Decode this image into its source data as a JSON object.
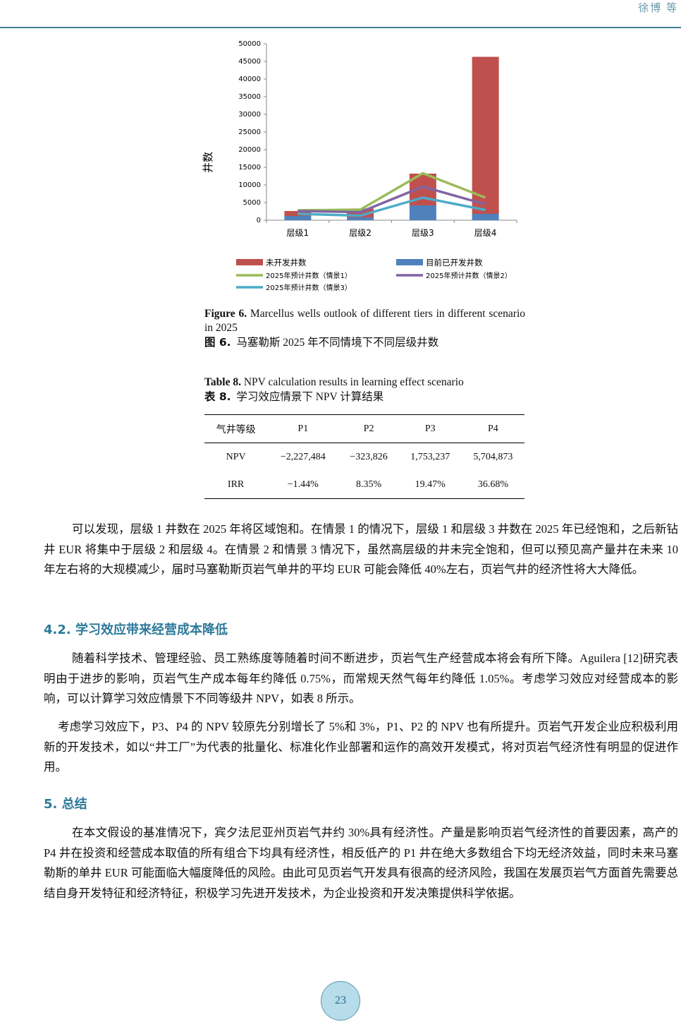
{
  "header": {
    "authors": "徐博 等"
  },
  "chart_data": {
    "type": "bar",
    "stacked": true,
    "categories": [
      "层级1",
      "层级2",
      "层级3",
      "层级4"
    ],
    "ylabel": "井数",
    "ylim": [
      0,
      50000
    ],
    "yticks": [
      0,
      5000,
      10000,
      15000,
      20000,
      25000,
      30000,
      35000,
      40000,
      45000,
      50000
    ],
    "grid": false,
    "legend_position": "bottom",
    "series": [
      {
        "name": "目前已开发井数",
        "kind": "bar",
        "color": "#4f81bd",
        "values": [
          1200,
          800,
          4200,
          1800
        ]
      },
      {
        "name": "未开发井数",
        "kind": "bar",
        "color": "#c0504d",
        "values": [
          1400,
          2500,
          9000,
          44500
        ]
      },
      {
        "name": "2025年预计井数（情景1）",
        "kind": "line",
        "color": "#9bbb59",
        "values": [
          2800,
          3000,
          13300,
          6400
        ]
      },
      {
        "name": "2025年预计井数（情景2）",
        "kind": "line",
        "color": "#8064a2",
        "values": [
          2600,
          2300,
          9500,
          4500
        ]
      },
      {
        "name": "2025年预计井数（情景3）",
        "kind": "line",
        "color": "#4bacc6",
        "values": [
          1800,
          1300,
          6400,
          2900
        ]
      }
    ]
  },
  "figure": {
    "en_label": "Figure 6.",
    "en_text": "Marcellus wells outlook of different tiers in different scenario in 2025",
    "zh_label": "图 6.",
    "zh_text": "马塞勒斯 2025 年不同情境下不同层级井数"
  },
  "table": {
    "en_label": "Table 8.",
    "en_text": "NPV calculation results in learning effect scenario",
    "zh_label": "表 8.",
    "zh_text": "学习效应情景下 NPV 计算结果",
    "headers": [
      "气井等级",
      "P1",
      "P2",
      "P3",
      "P4"
    ],
    "rows": [
      [
        "NPV",
        "−2,227,484",
        "−323,826",
        "1,753,237",
        "5,704,873"
      ],
      [
        "IRR",
        "−1.44%",
        "8.35%",
        "19.47%",
        "36.68%"
      ]
    ]
  },
  "paragraphs": [
    "可以发现，层级 1 井数在 2025 年将区域饱和。在情景 1 的情况下，层级 1 和层级 3 井数在 2025 年已经饱和，之后新钻井 EUR 将集中于层级 2 和层级 4。在情景 2 和情景 3 情况下，虽然高层级的井未完全饱和，但可以预见高产量井在未来 10 年左右将的大规模减少，届时马塞勒斯页岩气单井的平均 EUR 可能会降低 40%左右，页岩气井的经济性将大大降低。",
    "随着科学技术、管理经验、员工熟练度等随着时间不断进步，页岩气生产经营成本将会有所下降。Aguilera [12]研究表明由于进步的影响，页岩气生产成本每年约降低 0.75%，而常规天然气每年约降低 1.05%。考虑学习效应对经营成本的影响，可以计算学习效应情景下不同等级井 NPV，如表 8 所示。",
    "考虑学习效应下，P3、P4 的 NPV 较原先分别增长了 5%和 3%，P1、P2 的 NPV 也有所提升。页岩气开发企业应积极利用新的开发技术，如以“井工厂”为代表的批量化、标准化作业部署和运作的高效开发模式，将对页岩气经济性有明显的促进作用。",
    "在本文假设的基准情况下，宾夕法尼亚州页岩气井约 30%具有经济性。产量是影响页岩气经济性的首要因素，高产的 P4 井在投资和经营成本取值的所有组合下均具有经济性，相反低产的 P1 井在绝大多数组合下均无经济效益，同时未来马塞勒斯的单井 EUR 可能面临大幅度降低的风险。由此可见页岩气开发具有很高的经济风险，我国在发展页岩气方面首先需要总结自身开发特征和经济特征，积极学习先进开发技术，为企业投资和开发决策提供科学依据。"
  ],
  "sections": {
    "s42": "4.2.  学习效应带来经营成本降低",
    "s5": "5.  总结"
  },
  "page_number": "23"
}
